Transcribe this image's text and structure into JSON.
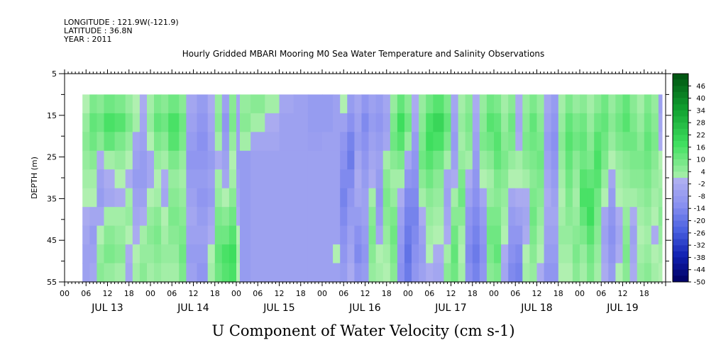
{
  "header": {
    "longitude": "LONGITUDE : 121.9W(-121.9)",
    "latitude": "LATITUDE : 36.8N",
    "year": "YEAR : 2011",
    "title": "Hourly Gridded MBARI Mooring M0 Sea Water Temperature and Salinity Observations"
  },
  "chart_data": {
    "type": "heatmap",
    "title": "Hourly Gridded MBARI Mooring M0 Sea Water Temperature and Salinity Observations",
    "xlabel": "U Component of Water Velocity (cm s-1)",
    "ylabel": "DEPTH (m)",
    "x_range_hours": [
      0,
      168
    ],
    "y_range": [
      5,
      55
    ],
    "y_inverted": true,
    "y_ticks": [
      5,
      15,
      25,
      35,
      45,
      55
    ],
    "x_hour_labels": [
      "00",
      "06",
      "12",
      "18",
      "00",
      "06",
      "12",
      "18",
      "00",
      "06",
      "12",
      "18",
      "00",
      "06",
      "12",
      "18",
      "00",
      "06",
      "12",
      "18",
      "00",
      "06",
      "12",
      "18",
      "00",
      "06",
      "12",
      "18"
    ],
    "x_day_labels": [
      "JUL 13",
      "JUL 14",
      "JUL 15",
      "JUL 16",
      "JUL 17",
      "JUL 18",
      "JUL 19"
    ],
    "data_extent": {
      "depth_top": 10,
      "depth_bottom": 55,
      "start": "JUL 13 05",
      "end": "JUL 19 23"
    },
    "colorbar": {
      "labels": [
        "46",
        "40",
        "34",
        "28",
        "22",
        "16",
        "10",
        "4",
        "-2",
        "-8",
        "-14",
        "-20",
        "-26",
        "-32",
        "-38",
        "-44",
        "-50"
      ],
      "min": -50,
      "max": 52,
      "step": 3
    },
    "columns": [
      {
        "x0": 5,
        "x1": 7,
        "v": [
          0,
          4,
          6,
          4,
          2,
          0,
          -2,
          -4,
          -6,
          -6
        ]
      },
      {
        "x0": 7,
        "x1": 9,
        "v": [
          8,
          12,
          10,
          6,
          2,
          0,
          -4,
          -8,
          -6,
          -4
        ]
      },
      {
        "x0": 9,
        "x1": 11,
        "v": [
          6,
          10,
          6,
          -2,
          -6,
          -8,
          -4,
          0,
          4,
          6
        ]
      },
      {
        "x0": 11,
        "x1": 14,
        "v": [
          10,
          16,
          12,
          2,
          -2,
          -4,
          2,
          6,
          8,
          4
        ]
      },
      {
        "x0": 14,
        "x1": 17,
        "v": [
          8,
          14,
          8,
          4,
          0,
          -2,
          2,
          4,
          6,
          2
        ]
      },
      {
        "x0": 17,
        "x1": 19,
        "v": [
          4,
          8,
          4,
          0,
          -2,
          2,
          4,
          0,
          -2,
          -4
        ]
      },
      {
        "x0": 19,
        "x1": 21,
        "v": [
          0,
          2,
          -4,
          -6,
          -8,
          -6,
          -4,
          -2,
          0,
          2
        ]
      },
      {
        "x0": 21,
        "x1": 23,
        "v": [
          -2,
          -4,
          -6,
          -8,
          -8,
          -6,
          -2,
          2,
          4,
          6
        ]
      },
      {
        "x0": 23,
        "x1": 25,
        "v": [
          2,
          4,
          0,
          -4,
          -4,
          0,
          4,
          6,
          4,
          2
        ]
      },
      {
        "x0": 25,
        "x1": 27,
        "v": [
          8,
          12,
          8,
          4,
          0,
          2,
          6,
          8,
          6,
          4
        ]
      },
      {
        "x0": 27,
        "x1": 29,
        "v": [
          6,
          10,
          6,
          2,
          -2,
          -4,
          0,
          2,
          4,
          2
        ]
      },
      {
        "x0": 29,
        "x1": 32,
        "v": [
          10,
          16,
          14,
          8,
          4,
          6,
          8,
          6,
          4,
          2
        ]
      },
      {
        "x0": 32,
        "x1": 34,
        "v": [
          6,
          10,
          8,
          4,
          2,
          4,
          6,
          8,
          10,
          8
        ]
      },
      {
        "x0": 34,
        "x1": 37,
        "v": [
          -4,
          -6,
          -8,
          -10,
          -8,
          -6,
          -4,
          -6,
          -8,
          -6
        ]
      },
      {
        "x0": 37,
        "x1": 40,
        "v": [
          -8,
          -10,
          -12,
          -10,
          -8,
          -10,
          -8,
          -6,
          -8,
          -10
        ]
      },
      {
        "x0": 40,
        "x1": 42,
        "v": [
          -2,
          -4,
          -6,
          -8,
          -6,
          -8,
          -4,
          -2,
          0,
          2
        ]
      },
      {
        "x0": 42,
        "x1": 44,
        "v": [
          4,
          6,
          2,
          -2,
          2,
          4,
          8,
          10,
          12,
          10
        ]
      },
      {
        "x0": 44,
        "x1": 46,
        "v": [
          -6,
          -10,
          -8,
          -6,
          -4,
          0,
          6,
          10,
          16,
          14
        ]
      },
      {
        "x0": 46,
        "x1": 48,
        "v": [
          6,
          8,
          4,
          0,
          2,
          6,
          10,
          14,
          18,
          16
        ]
      },
      {
        "x0": 48,
        "x1": 49,
        "v": [
          -4,
          -6,
          -6,
          -8,
          -6,
          -4,
          -2,
          0,
          2,
          0
        ]
      },
      {
        "x0": 49,
        "x1": 52,
        "v": [
          4,
          6,
          2,
          -8,
          -8,
          -8,
          -8,
          -8,
          -8,
          -8
        ]
      },
      {
        "x0": 52,
        "x1": 56,
        "v": [
          6,
          2,
          -4,
          -6,
          -6,
          -6,
          -6,
          -6,
          -6,
          -6
        ]
      },
      {
        "x0": 56,
        "x1": 60,
        "v": [
          2,
          -2,
          -4,
          -6,
          -6,
          -6,
          -6,
          -6,
          -6,
          -6
        ]
      },
      {
        "x0": 60,
        "x1": 64,
        "v": [
          -4,
          -6,
          -6,
          -6,
          -6,
          -6,
          -6,
          -6,
          -6,
          -6
        ]
      },
      {
        "x0": 64,
        "x1": 68,
        "v": [
          -6,
          -6,
          -6,
          -6,
          -6,
          -6,
          -6,
          -6,
          -6,
          -6
        ]
      },
      {
        "x0": 68,
        "x1": 72,
        "v": [
          -8,
          -8,
          -7,
          -6,
          -6,
          -6,
          -6,
          -6,
          -6,
          -6
        ]
      },
      {
        "x0": 72,
        "x1": 75,
        "v": [
          -8,
          -8,
          -6,
          -6,
          -6,
          -6,
          -6,
          -6,
          -6,
          -6
        ]
      },
      {
        "x0": 75,
        "x1": 77,
        "v": [
          -6,
          -6,
          -6,
          -6,
          -6,
          -6,
          -6,
          -6,
          0,
          -6
        ]
      },
      {
        "x0": 77,
        "x1": 79,
        "v": [
          0,
          -6,
          -10,
          -12,
          -14,
          -16,
          -14,
          -12,
          -10,
          -8
        ]
      },
      {
        "x0": 79,
        "x1": 81,
        "v": [
          -8,
          -12,
          -16,
          -18,
          -14,
          -10,
          -8,
          -6,
          -4,
          -2
        ]
      },
      {
        "x0": 81,
        "x1": 83,
        "v": [
          -4,
          -6,
          -8,
          -4,
          -2,
          -4,
          -8,
          -12,
          -14,
          -10
        ]
      },
      {
        "x0": 83,
        "x1": 85,
        "v": [
          -10,
          -14,
          -12,
          -10,
          -8,
          -6,
          -6,
          -8,
          -10,
          -8
        ]
      },
      {
        "x0": 85,
        "x1": 87,
        "v": [
          -6,
          -8,
          -6,
          -4,
          -2,
          2,
          6,
          8,
          6,
          4
        ]
      },
      {
        "x0": 87,
        "x1": 89,
        "v": [
          -8,
          -10,
          -8,
          -6,
          -8,
          -10,
          -8,
          -4,
          0,
          2
        ]
      },
      {
        "x0": 89,
        "x1": 91,
        "v": [
          -4,
          -6,
          -4,
          2,
          6,
          8,
          6,
          4,
          2,
          0
        ]
      },
      {
        "x0": 91,
        "x1": 93,
        "v": [
          4,
          8,
          10,
          6,
          2,
          4,
          8,
          10,
          8,
          6
        ]
      },
      {
        "x0": 93,
        "x1": 95,
        "v": [
          12,
          18,
          14,
          8,
          2,
          -2,
          -6,
          -8,
          -10,
          -12
        ]
      },
      {
        "x0": 95,
        "x1": 97,
        "v": [
          6,
          10,
          4,
          -4,
          -10,
          -14,
          -16,
          -18,
          -20,
          -18
        ]
      },
      {
        "x0": 97,
        "x1": 99,
        "v": [
          -2,
          -4,
          -8,
          -10,
          -12,
          -14,
          -16,
          -14,
          -12,
          -10
        ]
      },
      {
        "x0": 99,
        "x1": 101,
        "v": [
          4,
          6,
          8,
          10,
          6,
          2,
          -2,
          -6,
          -8,
          -6
        ]
      },
      {
        "x0": 101,
        "x1": 103,
        "v": [
          10,
          16,
          18,
          14,
          10,
          6,
          4,
          2,
          0,
          -2
        ]
      },
      {
        "x0": 103,
        "x1": 106,
        "v": [
          14,
          20,
          16,
          10,
          6,
          4,
          2,
          0,
          -2,
          -4
        ]
      },
      {
        "x0": 106,
        "x1": 108,
        "v": [
          8,
          12,
          8,
          2,
          -4,
          -6,
          -4,
          -2,
          2,
          6
        ]
      },
      {
        "x0": 108,
        "x1": 110,
        "v": [
          -4,
          -6,
          -8,
          -6,
          -2,
          2,
          6,
          10,
          12,
          10
        ]
      },
      {
        "x0": 110,
        "x1": 112,
        "v": [
          2,
          4,
          2,
          4,
          8,
          10,
          6,
          2,
          0,
          2
        ]
      },
      {
        "x0": 112,
        "x1": 114,
        "v": [
          6,
          8,
          6,
          2,
          -2,
          -6,
          -10,
          -12,
          -14,
          -12
        ]
      },
      {
        "x0": 114,
        "x1": 116,
        "v": [
          -2,
          -4,
          -6,
          -8,
          -10,
          -12,
          -14,
          -16,
          -18,
          -16
        ]
      },
      {
        "x0": 116,
        "x1": 118,
        "v": [
          4,
          6,
          8,
          4,
          0,
          -4,
          -8,
          -10,
          -12,
          -10
        ]
      },
      {
        "x0": 118,
        "x1": 120,
        "v": [
          10,
          14,
          10,
          6,
          2,
          4,
          8,
          10,
          8,
          6
        ]
      },
      {
        "x0": 120,
        "x1": 122,
        "v": [
          8,
          12,
          14,
          12,
          8,
          6,
          8,
          10,
          12,
          8
        ]
      },
      {
        "x0": 122,
        "x1": 124,
        "v": [
          2,
          4,
          6,
          8,
          6,
          4,
          2,
          0,
          -2,
          -4
        ]
      },
      {
        "x0": 124,
        "x1": 126,
        "v": [
          6,
          10,
          8,
          4,
          0,
          -4,
          -8,
          -10,
          -12,
          -14
        ]
      },
      {
        "x0": 126,
        "x1": 128,
        "v": [
          -2,
          -4,
          -2,
          2,
          0,
          -2,
          -6,
          -10,
          -14,
          -16
        ]
      },
      {
        "x0": 128,
        "x1": 130,
        "v": [
          4,
          6,
          8,
          6,
          2,
          -2,
          -4,
          -2,
          0,
          2
        ]
      },
      {
        "x0": 130,
        "x1": 132,
        "v": [
          8,
          12,
          10,
          8,
          6,
          8,
          10,
          8,
          6,
          4
        ]
      },
      {
        "x0": 132,
        "x1": 134,
        "v": [
          4,
          6,
          8,
          10,
          8,
          6,
          4,
          2,
          0,
          -2
        ]
      },
      {
        "x0": 134,
        "x1": 136,
        "v": [
          -4,
          -6,
          -8,
          -6,
          -4,
          -2,
          -4,
          -6,
          -8,
          -10
        ]
      },
      {
        "x0": 136,
        "x1": 138,
        "v": [
          -8,
          -10,
          -12,
          -10,
          -8,
          -6,
          -4,
          -6,
          -8,
          -10
        ]
      },
      {
        "x0": 138,
        "x1": 140,
        "v": [
          2,
          4,
          6,
          4,
          2,
          0,
          2,
          4,
          2,
          0
        ]
      },
      {
        "x0": 140,
        "x1": 142,
        "v": [
          8,
          12,
          14,
          12,
          10,
          8,
          6,
          4,
          2,
          0
        ]
      },
      {
        "x0": 142,
        "x1": 144,
        "v": [
          4,
          8,
          10,
          6,
          4,
          2,
          4,
          6,
          8,
          6
        ]
      },
      {
        "x0": 144,
        "x1": 146,
        "v": [
          6,
          10,
          12,
          10,
          14,
          16,
          12,
          8,
          4,
          2
        ]
      },
      {
        "x0": 146,
        "x1": 148,
        "v": [
          2,
          4,
          6,
          8,
          12,
          16,
          18,
          14,
          10,
          8
        ]
      },
      {
        "x0": 148,
        "x1": 150,
        "v": [
          6,
          10,
          14,
          16,
          14,
          10,
          8,
          6,
          4,
          2
        ]
      },
      {
        "x0": 150,
        "x1": 152,
        "v": [
          10,
          12,
          10,
          8,
          4,
          0,
          -4,
          -6,
          -4,
          -2
        ]
      },
      {
        "x0": 152,
        "x1": 154,
        "v": [
          4,
          6,
          4,
          0,
          -4,
          -8,
          -10,
          -12,
          -10,
          -8
        ]
      },
      {
        "x0": 154,
        "x1": 156,
        "v": [
          8,
          10,
          8,
          4,
          2,
          0,
          -2,
          -4,
          -2,
          0
        ]
      },
      {
        "x0": 156,
        "x1": 158,
        "v": [
          12,
          14,
          10,
          6,
          4,
          2,
          4,
          6,
          8,
          6
        ]
      },
      {
        "x0": 158,
        "x1": 160,
        "v": [
          6,
          8,
          10,
          8,
          6,
          2,
          -2,
          -6,
          -4,
          -2
        ]
      },
      {
        "x0": 160,
        "x1": 162,
        "v": [
          2,
          4,
          6,
          8,
          6,
          4,
          2,
          0,
          2,
          4
        ]
      },
      {
        "x0": 162,
        "x1": 164,
        "v": [
          8,
          10,
          12,
          10,
          8,
          6,
          4,
          2,
          4,
          6
        ]
      },
      {
        "x0": 164,
        "x1": 166,
        "v": [
          4,
          6,
          8,
          6,
          4,
          2,
          0,
          -2,
          0,
          2
        ]
      },
      {
        "x0": 166,
        "x1": 167,
        "v": [
          -6,
          -4,
          -2,
          0,
          2,
          4,
          6,
          4,
          2,
          0
        ]
      }
    ]
  }
}
